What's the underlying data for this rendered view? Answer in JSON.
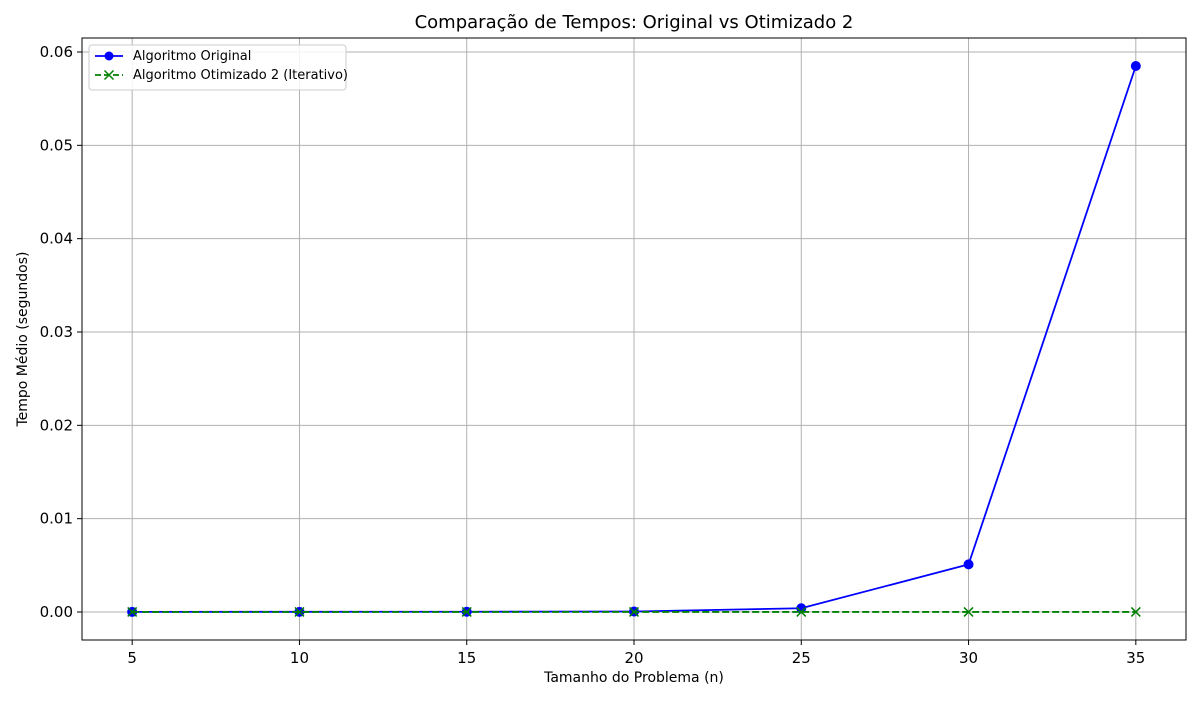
{
  "chart_data": {
    "type": "line",
    "title": "Comparação de Tempos: Original vs Otimizado 2",
    "xlabel": "Tamanho do Problema (n)",
    "ylabel": "Tempo Médio (segundos)",
    "x": [
      5,
      10,
      15,
      20,
      25,
      30,
      35
    ],
    "xlim": [
      3.5,
      36.5
    ],
    "ylim": [
      -0.003,
      0.0615
    ],
    "xticks": [
      5,
      10,
      15,
      20,
      25,
      30,
      35
    ],
    "xtick_labels": [
      "5",
      "10",
      "15",
      "20",
      "25",
      "30",
      "35"
    ],
    "yticks": [
      0.0,
      0.01,
      0.02,
      0.03,
      0.04,
      0.05,
      0.06
    ],
    "ytick_labels": [
      "0.00",
      "0.01",
      "0.02",
      "0.03",
      "0.04",
      "0.05",
      "0.06"
    ],
    "grid": true,
    "legend_position": "top-left",
    "series": [
      {
        "name": "Algoritmo Original",
        "values": [
          1e-05,
          2e-05,
          3e-05,
          5e-05,
          0.0004,
          0.0051,
          0.0585
        ],
        "color": "#0000ff",
        "line_style": "solid",
        "marker": "circle"
      },
      {
        "name": "Algoritmo Otimizado 2 (Iterativo)",
        "values": [
          5e-06,
          5e-06,
          5e-06,
          5e-06,
          5e-06,
          5e-06,
          5e-06
        ],
        "color": "#008000",
        "line_style": "dashed",
        "marker": "x"
      }
    ]
  }
}
